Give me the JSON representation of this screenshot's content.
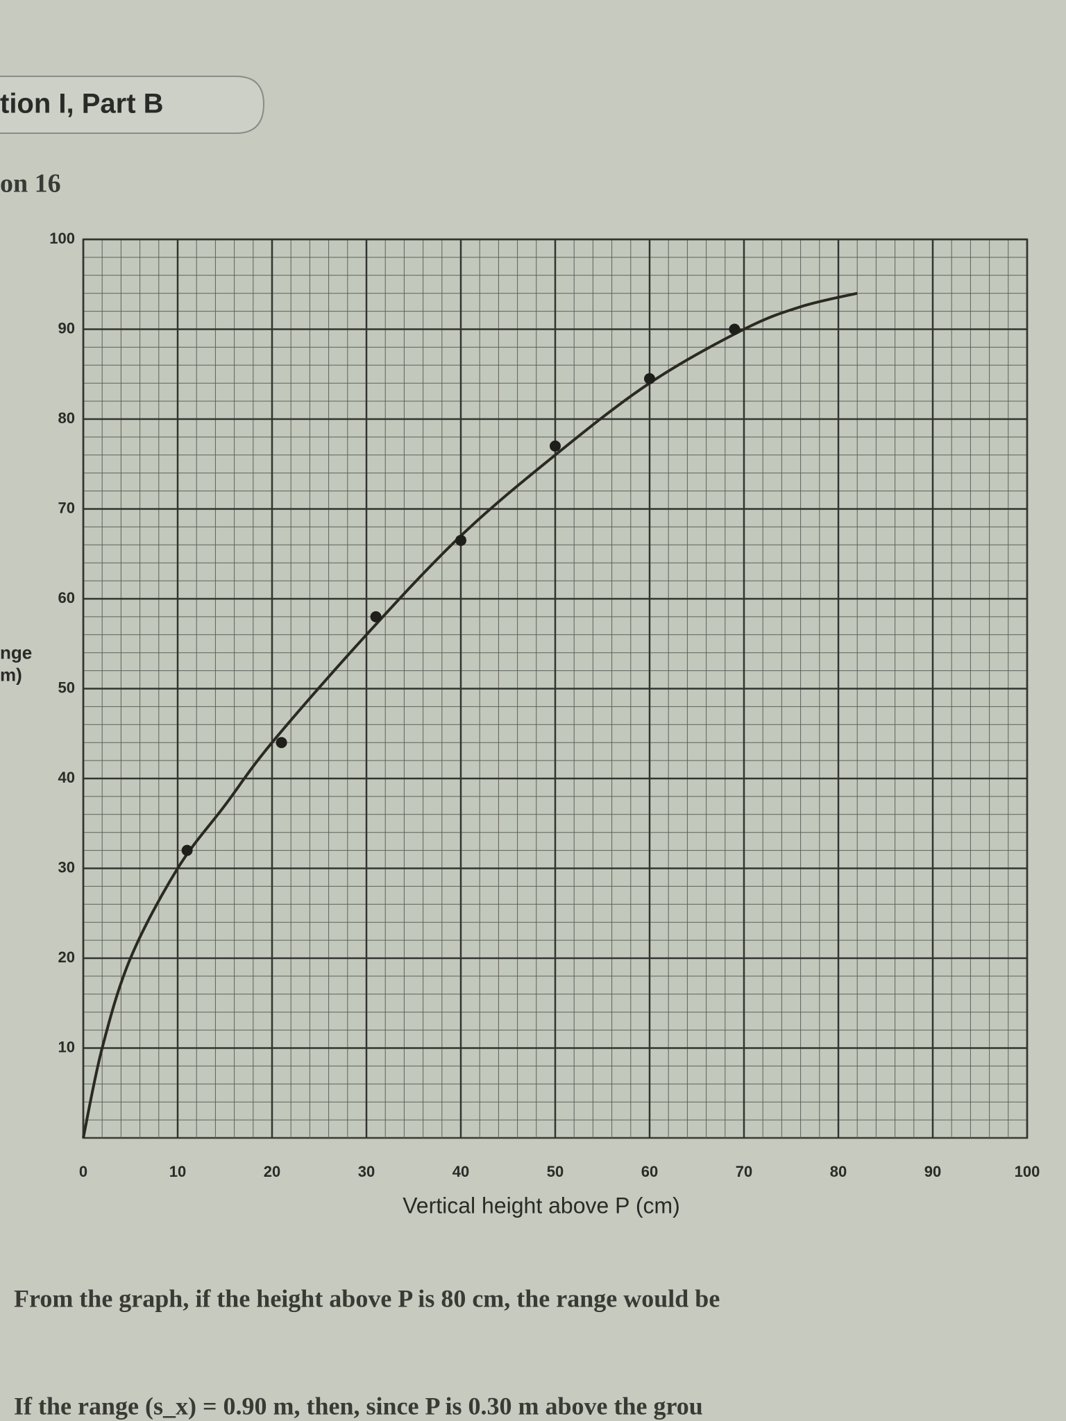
{
  "header": {
    "section": "tion I, Part B",
    "question": "on 16"
  },
  "chart_data": {
    "type": "scatter",
    "xlabel": "Vertical height above P (cm)",
    "ylabel": [
      "nge",
      "m)"
    ],
    "xlim": [
      0,
      100
    ],
    "ylim": [
      0,
      100
    ],
    "xticks": [
      0,
      10,
      20,
      30,
      40,
      50,
      60,
      70,
      80,
      90,
      100
    ],
    "yticks": [
      10,
      20,
      30,
      40,
      50,
      60,
      70,
      80,
      90,
      100
    ],
    "grid": true,
    "minor_divisions": 5,
    "series": [
      {
        "mode": "markers",
        "color": "#1e1e1a",
        "x": [
          11,
          21,
          31,
          40,
          50,
          60,
          69
        ],
        "values": [
          32,
          44,
          58,
          66.5,
          77,
          84.5,
          90
        ]
      },
      {
        "mode": "lines",
        "color": "#2a2a22",
        "x": [
          0,
          2,
          5,
          10,
          15,
          20,
          30,
          40,
          50,
          60,
          70,
          76,
          82
        ],
        "values": [
          0,
          10,
          20,
          30,
          37,
          44,
          56,
          67,
          76,
          84,
          90,
          92.5,
          94
        ]
      }
    ]
  },
  "text": [
    "From the graph, if the height above P is 80 cm, the range would be",
    "If the range (s_x) = 0.90 m, then, since P is 0.30 m above the grou"
  ]
}
